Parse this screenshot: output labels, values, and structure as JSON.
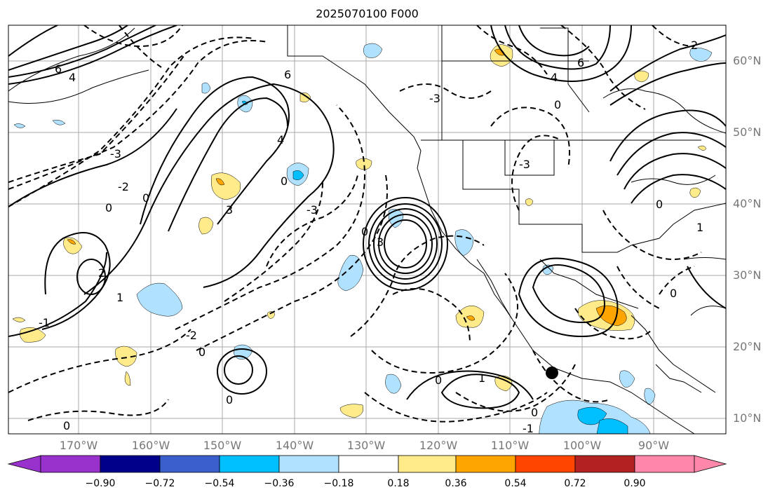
{
  "title": "2025070100 F000",
  "latitude_labels": [
    "60°N",
    "50°N",
    "40°N",
    "30°N",
    "20°N",
    "10°N"
  ],
  "longitude_labels": [
    "170°W",
    "160°W",
    "150°W",
    "140°W",
    "130°W",
    "120°W",
    "110°W",
    "100°W",
    "90°W"
  ],
  "contour_labels": [
    "6",
    "4",
    "2",
    "0",
    "-1",
    "-2",
    "-3",
    "3",
    "2",
    "1",
    "0",
    "-1",
    "4",
    "6"
  ],
  "colorbar": {
    "ticks": [
      "−0.90",
      "−0.72",
      "−0.54",
      "−0.36",
      "−0.18",
      "0.18",
      "0.36",
      "0.54",
      "0.72",
      "0.90"
    ],
    "colors": [
      "#9932cc",
      "#00008b",
      "#3a5fcd",
      "#00bfff",
      "#b0e2ff",
      "#ffffff",
      "#ffeb8a",
      "#ffa500",
      "#ff4500",
      "#b22222",
      "#ff88aa"
    ]
  },
  "marker": "black-dot"
}
